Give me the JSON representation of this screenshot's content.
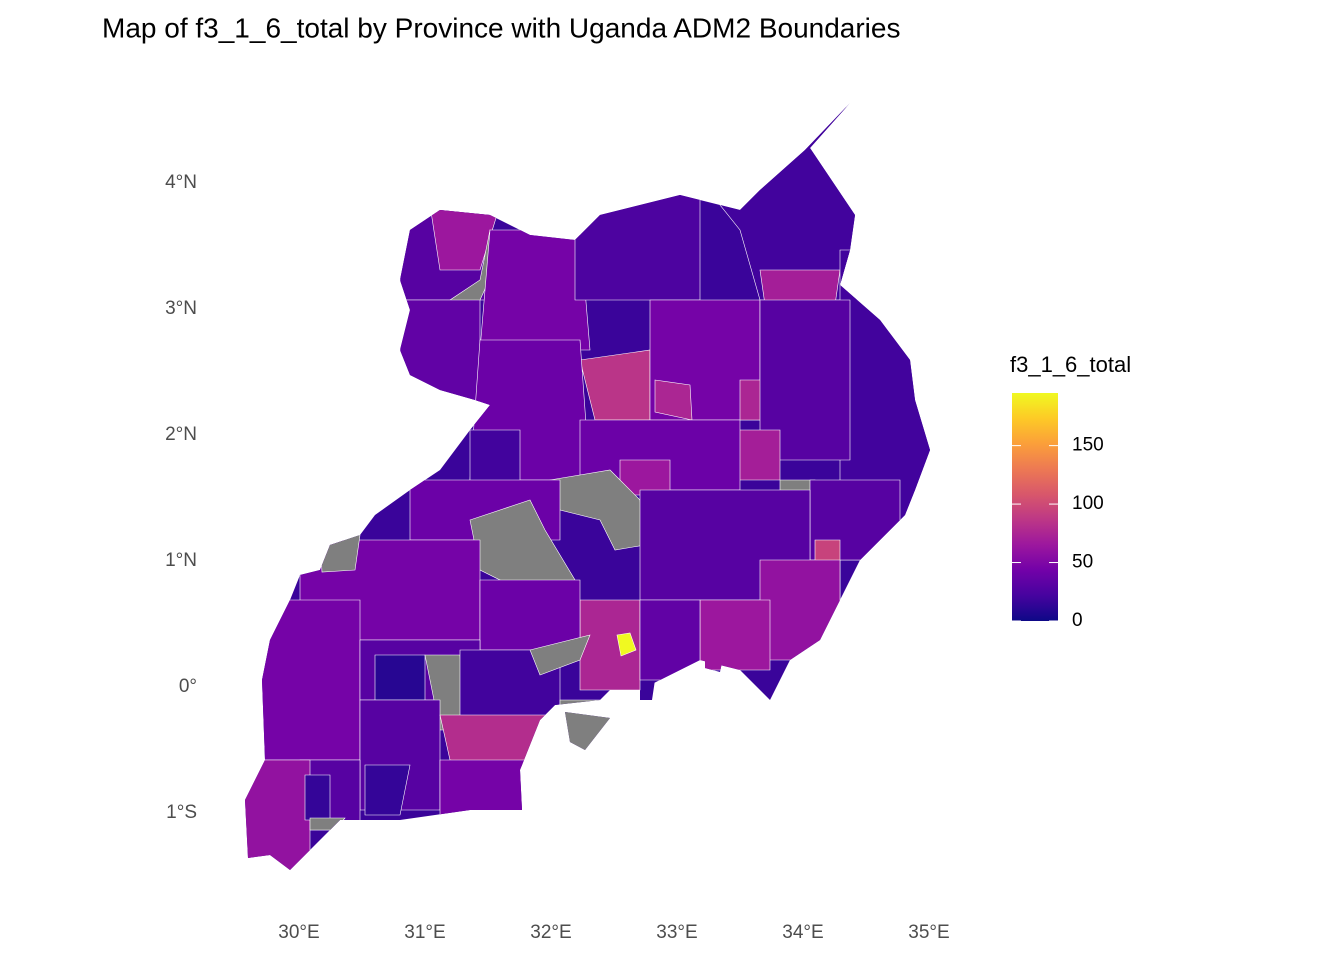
{
  "chart_data": {
    "type": "choropleth",
    "title": "Map of f3_1_6_total by Province with Uganda ADM2 Boundaries",
    "xticks": [
      {
        "value": 30,
        "label": "30°E"
      },
      {
        "value": 31,
        "label": "31°E"
      },
      {
        "value": 32,
        "label": "32°E"
      },
      {
        "value": 33,
        "label": "33°E"
      },
      {
        "value": 34,
        "label": "34°E"
      },
      {
        "value": 35,
        "label": "35°E"
      }
    ],
    "yticks": [
      {
        "value": 4,
        "label": "4°N"
      },
      {
        "value": 3,
        "label": "3°N"
      },
      {
        "value": 2,
        "label": "2°N"
      },
      {
        "value": 1,
        "label": "1°N"
      },
      {
        "value": 0,
        "label": "0°"
      },
      {
        "value": -1,
        "label": "1°S"
      }
    ],
    "legend_title": "f3_1_6_total",
    "colorlim": [
      0,
      195
    ],
    "legend_ticks": [
      0,
      50,
      100,
      150
    ],
    "palette": [
      "#0d0887",
      "#46039f",
      "#7201a8",
      "#9c179e",
      "#bd3786",
      "#d8576b",
      "#ed7953",
      "#fb9f3a",
      "#fdca26",
      "#f0f921"
    ],
    "na_color": "#7f7f7f",
    "values": [
      30,
      65,
      null,
      35,
      45,
      25,
      20,
      70,
      20,
      85,
      40,
      45,
      75,
      75,
      30,
      70,
      40,
      65,
      null,
      20,
      40,
      null,
      null,
      30,
      30,
      95,
      60,
      65,
      75,
      195,
      35,
      45,
      40,
      45,
      30,
      10,
      null,
      20,
      null,
      30,
      80,
      45,
      30,
      60,
      15,
      15,
      null,
      null,
      null
    ]
  }
}
